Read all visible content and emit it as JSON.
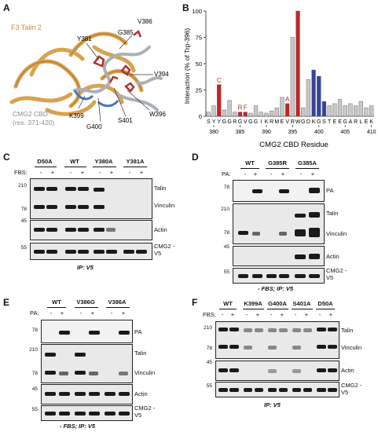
{
  "panelA": {
    "label": "A",
    "title": "F3 Talin 2",
    "cbd_title": "CMG2 CBD",
    "cbd_range": "(res. 371-420)",
    "residues": [
      "Y381",
      "G385",
      "V386",
      "V394",
      "W396",
      "S401",
      "G400",
      "K399"
    ],
    "colors": {
      "talin": "#d9a24e",
      "cmg2": "#aab0b8",
      "sticks": "#b03030",
      "blue": "#4a74b8"
    }
  },
  "panelB": {
    "label": "B",
    "chart_data": {
      "type": "bar",
      "ylabel": "Interaction (% of Trp-396)",
      "xlabel": "CMG2 CBD Residue",
      "ylim": [
        0,
        100
      ],
      "yticks": [
        0,
        25,
        50,
        75,
        100
      ],
      "residue_numbers": [
        379,
        380,
        381,
        382,
        383,
        384,
        385,
        386,
        387,
        388,
        389,
        390,
        391,
        392,
        393,
        394,
        395,
        396,
        397,
        398,
        399,
        400,
        401,
        402,
        403,
        404,
        405,
        406,
        407,
        408,
        409,
        410
      ],
      "categories": [
        "S",
        "Y",
        "Y",
        "G",
        "G",
        "R",
        "G",
        "V",
        "G",
        "G",
        "I",
        "K",
        "R",
        "M",
        "E",
        "V",
        "R",
        "W",
        "G",
        "D",
        "K",
        "G",
        "S",
        "T",
        "E",
        "E",
        "G",
        "A",
        "R",
        "L",
        "E",
        "K"
      ],
      "values": [
        4,
        10,
        30,
        6,
        15,
        4,
        4,
        4,
        3,
        10,
        4,
        3,
        5,
        8,
        18,
        12,
        75,
        100,
        8,
        35,
        44,
        38,
        14,
        10,
        12,
        16,
        10,
        12,
        10,
        14,
        8,
        10
      ],
      "highlight_red": [
        "Y381",
        "G385",
        "V386",
        "V394",
        "W396"
      ],
      "highlight_blue": [
        "K399",
        "G400",
        "S401"
      ],
      "bar_letters": [
        {
          "residue": 381,
          "text": "C"
        },
        {
          "residue": 385,
          "text": "R"
        },
        {
          "residue": 386,
          "text": "F"
        },
        {
          "residue": 394,
          "text": "A"
        }
      ],
      "xticks": [
        380,
        385,
        390,
        395,
        400,
        405,
        410
      ],
      "colors": {
        "default": "#c8c8c8",
        "red": "#c42424",
        "blue": "#34449a"
      }
    }
  },
  "panelC": {
    "label": "C",
    "groups": [
      "D50A",
      "WT",
      "Y380A",
      "Y381A"
    ],
    "treat": "FBS:",
    "signs": [
      "-",
      "+",
      "-",
      "+",
      "-",
      "+",
      "-",
      "+"
    ],
    "rows": [
      "Talin",
      "Vinculin",
      "Actin",
      "CMG2 -V5"
    ],
    "mw": [
      "210",
      "78",
      "45",
      "55"
    ],
    "caption": "IP: V5"
  },
  "panelD": {
    "label": "D",
    "groups": [
      "WT",
      "G385R",
      "G385A"
    ],
    "treat": "PA:",
    "signs": [
      "-",
      "+",
      "-",
      "+",
      "-",
      "+"
    ],
    "rows": [
      "PA",
      "Talin",
      "Vinculin",
      "Actin",
      "CMG2 -V5"
    ],
    "mw": [
      "78",
      "210",
      "78",
      "45",
      "55"
    ],
    "caption": "- FBS; IP: V5"
  },
  "panelE": {
    "label": "E",
    "groups": [
      "WT",
      "V386G",
      "V386A"
    ],
    "treat": "PA:",
    "signs": [
      "-",
      "+",
      "-",
      "+",
      "-",
      "+"
    ],
    "rows": [
      "PA",
      "Talin",
      "Vinculin",
      "Actin",
      "CMG2 -V5"
    ],
    "mw": [
      "78",
      "210",
      "78",
      "45",
      "55"
    ],
    "caption": "- FBS; IP: V5"
  },
  "panelF": {
    "label": "F",
    "groups": [
      "WT",
      "K399A",
      "G400A",
      "S401A",
      "D50A"
    ],
    "treat": "FBS:",
    "signs": [
      "-",
      "+",
      "-",
      "+",
      "-",
      "+",
      "-",
      "+",
      "-",
      "+"
    ],
    "rows": [
      "Talin",
      "Vinculin",
      "Actin",
      "CMG2 -V5"
    ],
    "mw": [
      "210",
      "78",
      "45",
      "55"
    ],
    "caption": "IP: V5"
  }
}
